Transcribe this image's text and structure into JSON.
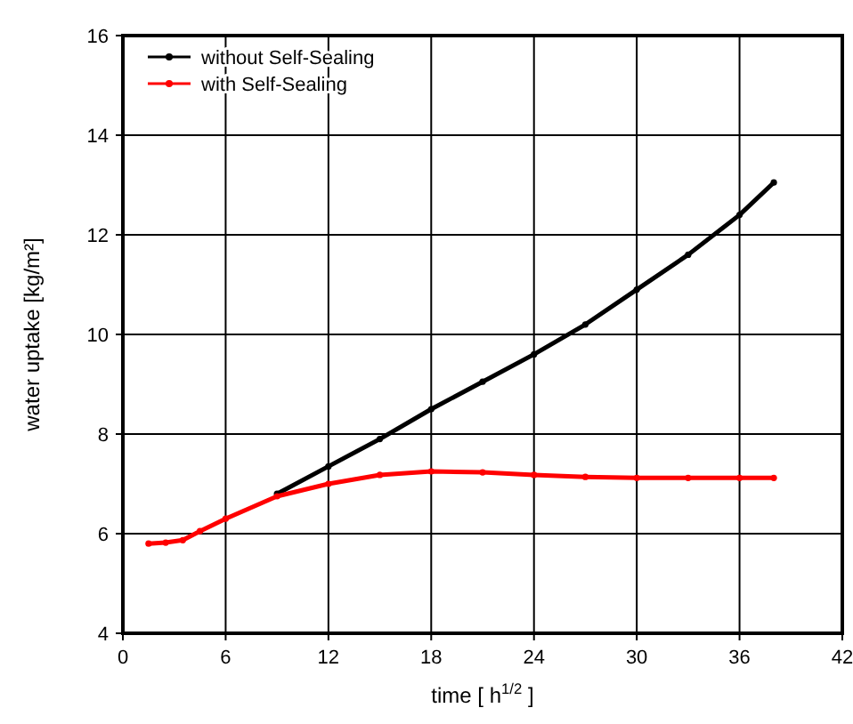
{
  "chart_data": {
    "type": "line",
    "xlabel": "time [ h$^{1/2}$ ]",
    "ylabel": "water uptake [kg/m²]",
    "xlim": [
      0,
      42
    ],
    "xticks": [
      0,
      6,
      12,
      18,
      24,
      30,
      36,
      42
    ],
    "ylim": [
      4,
      16
    ],
    "yticks": [
      4,
      6,
      8,
      10,
      12,
      14,
      16
    ],
    "grid": true,
    "legend": "top left",
    "marker": "circle",
    "series": [
      {
        "name": "without Self-Sealing",
        "color": "#000000",
        "x": [
          9,
          12,
          15,
          18,
          21,
          24,
          27,
          30,
          33,
          36,
          38
        ],
        "values": [
          6.8,
          7.35,
          7.9,
          8.5,
          9.05,
          9.6,
          10.2,
          10.9,
          11.6,
          12.4,
          13.05
        ]
      },
      {
        "name": "with Self-Sealing",
        "color": "#ff0000",
        "x": [
          1.5,
          2.5,
          3.5,
          4.5,
          6,
          9,
          12,
          15,
          18,
          21,
          24,
          27,
          30,
          33,
          36,
          38
        ],
        "values": [
          5.8,
          5.82,
          5.87,
          6.05,
          6.3,
          6.75,
          7.0,
          7.18,
          7.25,
          7.23,
          7.18,
          7.14,
          7.12,
          7.12,
          7.12,
          7.12
        ]
      }
    ]
  }
}
